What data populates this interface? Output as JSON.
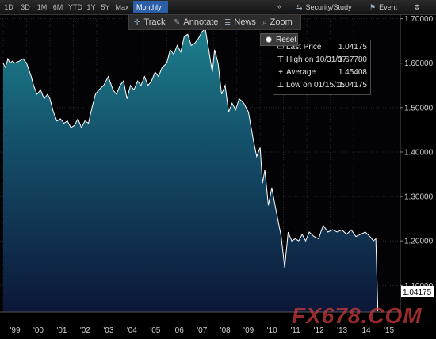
{
  "toolbar": {
    "ranges": [
      "1D",
      "3D",
      "1M",
      "6M",
      "YTD",
      "1Y",
      "5Y",
      "Max"
    ],
    "period": "Monthly ▼",
    "collapse": "«",
    "security_study": "Security/Study",
    "event": "Event"
  },
  "tools": {
    "track": "Track",
    "annotate": "Annotate",
    "news": "News",
    "zoom": "Zoom"
  },
  "reset": "Reset",
  "legend": {
    "items": [
      {
        "label": "Last Price",
        "value": "1.04175"
      },
      {
        "label": "High on 10/31/07",
        "value": "1.67780"
      },
      {
        "label": "Average",
        "value": "1.45408"
      },
      {
        "label": "Low on 01/15/15",
        "value": "1.04175"
      }
    ]
  },
  "last_price_tag": "1.04175",
  "watermark": "FX678.COM",
  "colors": {
    "area_top": "#1d7f8c",
    "area_bottom": "#0c1738",
    "line": "#ffffff",
    "tag_bg": "#ffffff"
  },
  "chart_data": {
    "type": "area",
    "x_tick_labels": [
      "'99",
      "'00",
      "'01",
      "'02",
      "'03",
      "'04",
      "'05",
      "'06",
      "'07",
      "'08",
      "'09",
      "'10",
      "'11",
      "'12",
      "'13",
      "'14",
      "'15"
    ],
    "y_tick_labels": [
      "1.10000",
      "1.20000",
      "1.30000",
      "1.40000",
      "1.50000",
      "1.60000",
      "1.70000"
    ],
    "ylim": [
      1.04,
      1.71
    ],
    "xlim": [
      1999.0,
      2016.0
    ],
    "grid": true,
    "series": [
      {
        "name": "Last Price",
        "x": [
          1999.0,
          1999.1,
          1999.2,
          1999.3,
          1999.4,
          1999.5,
          1999.7,
          1999.85,
          2000.0,
          2000.2,
          2000.3,
          2000.45,
          2000.6,
          2000.75,
          2000.9,
          2001.0,
          2001.15,
          2001.3,
          2001.45,
          2001.6,
          2001.75,
          2001.9,
          2002.05,
          2002.2,
          2002.35,
          2002.5,
          2002.65,
          2002.8,
          2002.95,
          2003.1,
          2003.3,
          2003.5,
          2003.7,
          2003.85,
          2004.0,
          2004.15,
          2004.3,
          2004.45,
          2004.6,
          2004.75,
          2004.9,
          2005.05,
          2005.2,
          2005.35,
          2005.5,
          2005.65,
          2005.8,
          2006.0,
          2006.15,
          2006.3,
          2006.45,
          2006.6,
          2006.75,
          2006.9,
          2007.05,
          2007.2,
          2007.35,
          2007.5,
          2007.65,
          2007.83,
          2007.95,
          2008.05,
          2008.2,
          2008.35,
          2008.5,
          2008.65,
          2008.8,
          2008.95,
          2009.1,
          2009.3,
          2009.5,
          2009.7,
          2009.85,
          2010.0,
          2010.1,
          2010.2,
          2010.35,
          2010.5,
          2010.6,
          2010.75,
          2010.9,
          2011.05,
          2011.2,
          2011.35,
          2011.5,
          2011.65,
          2011.8,
          2011.95,
          2012.1,
          2012.3,
          2012.5,
          2012.7,
          2012.9,
          2013.1,
          2013.3,
          2013.5,
          2013.7,
          2013.9,
          2014.1,
          2014.3,
          2014.5,
          2014.7,
          2014.85,
          2014.95,
          2015.04
        ],
        "y": [
          1.6,
          1.59,
          1.61,
          1.6,
          1.605,
          1.6,
          1.605,
          1.61,
          1.6,
          1.57,
          1.55,
          1.53,
          1.54,
          1.52,
          1.53,
          1.52,
          1.49,
          1.47,
          1.475,
          1.465,
          1.47,
          1.455,
          1.46,
          1.475,
          1.455,
          1.47,
          1.465,
          1.5,
          1.53,
          1.54,
          1.55,
          1.57,
          1.54,
          1.53,
          1.55,
          1.56,
          1.52,
          1.55,
          1.54,
          1.56,
          1.55,
          1.57,
          1.55,
          1.56,
          1.58,
          1.57,
          1.59,
          1.6,
          1.63,
          1.62,
          1.64,
          1.625,
          1.66,
          1.665,
          1.64,
          1.645,
          1.655,
          1.67,
          1.6778,
          1.62,
          1.58,
          1.63,
          1.6,
          1.53,
          1.55,
          1.49,
          1.51,
          1.495,
          1.52,
          1.51,
          1.49,
          1.43,
          1.39,
          1.41,
          1.33,
          1.36,
          1.28,
          1.32,
          1.29,
          1.25,
          1.21,
          1.14,
          1.22,
          1.2,
          1.205,
          1.2,
          1.215,
          1.2,
          1.22,
          1.21,
          1.205,
          1.235,
          1.22,
          1.225,
          1.22,
          1.225,
          1.215,
          1.225,
          1.21,
          1.215,
          1.22,
          1.21,
          1.2,
          1.205,
          1.04175
        ]
      }
    ]
  }
}
